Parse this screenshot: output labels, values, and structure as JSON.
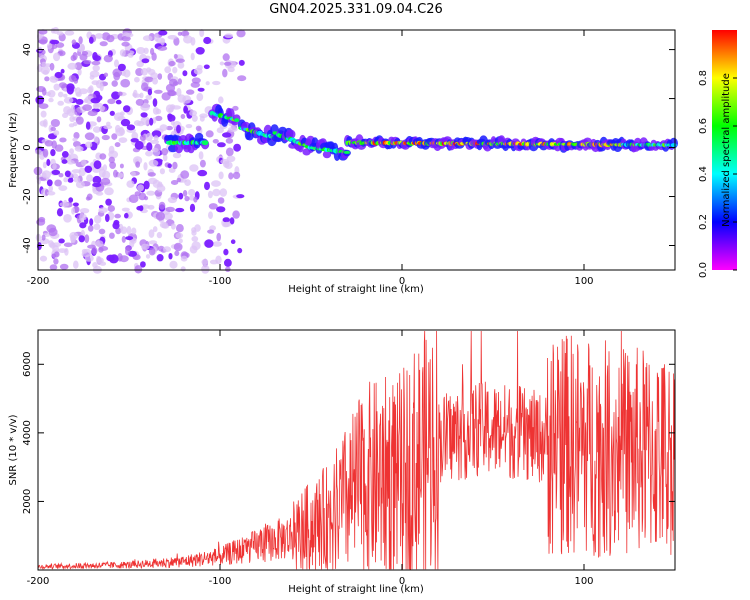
{
  "title": "GN04.2025.331.09.04.C26",
  "chart_data": [
    {
      "type": "heatmap",
      "xlabel": "Height of straight line (km)",
      "ylabel": "Frequency (Hz)",
      "xlim": [
        -200,
        150
      ],
      "ylim": [
        -50,
        48
      ],
      "x_ticks": [
        "-200",
        "-100",
        "0",
        "100"
      ],
      "y_ticks": [
        "40",
        "20",
        "0",
        "-20",
        "-40"
      ],
      "colorbar": {
        "label": "Normalized spectral amplitude",
        "range": [
          0,
          1
        ],
        "ticks": [
          "0.0",
          "0.2",
          "0.4",
          "0.6",
          "0.8"
        ],
        "colormap": [
          "#ff00ff",
          "#0000ff",
          "#00ffff",
          "#00ff00",
          "#ffff00",
          "#ff0000"
        ]
      },
      "noise_region_km": [
        -200,
        -88
      ],
      "line_segments": [
        {
          "x": [
            -128,
            -108
          ],
          "f": [
            2,
            2
          ]
        },
        {
          "x": [
            -104,
            -90
          ],
          "f": [
            14,
            11
          ]
        },
        {
          "x": [
            -88,
            -70
          ],
          "f": [
            8,
            4
          ]
        },
        {
          "x": [
            -70,
            -50
          ],
          "f": [
            6,
            0
          ]
        },
        {
          "x": [
            -50,
            -30
          ],
          "f": [
            0,
            -2
          ]
        },
        {
          "x": [
            -30,
            150
          ],
          "f": [
            2,
            1
          ]
        }
      ],
      "peak_amplitude": 1.0
    },
    {
      "type": "line",
      "xlabel": "Height of straight line (km)",
      "ylabel": "SNR (10 * v/v)",
      "xlim": [
        -200,
        150
      ],
      "ylim": [
        0,
        7000
      ],
      "x_ticks": [
        "-200",
        "-100",
        "0",
        "100"
      ],
      "y_ticks": [
        "6000",
        "4000",
        "2000"
      ],
      "color": "#ee3333",
      "envelope": {
        "x": [
          -200,
          -150,
          -120,
          -100,
          -80,
          -60,
          -40,
          -20,
          0,
          20,
          40,
          60,
          80,
          100,
          120,
          140,
          150
        ],
        "y": [
          100,
          150,
          250,
          400,
          700,
          1000,
          1500,
          2600,
          2800,
          3800,
          4100,
          4050,
          3800,
          3600,
          3500,
          3400,
          3300
        ]
      }
    }
  ]
}
